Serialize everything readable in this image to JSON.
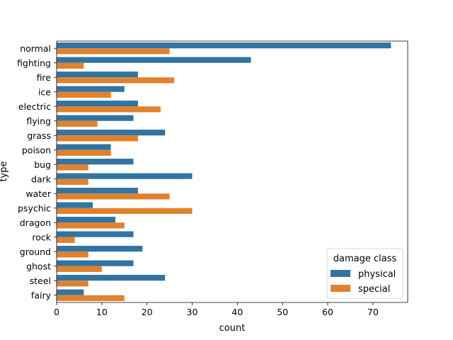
{
  "chart_data": {
    "type": "bar",
    "orientation": "horizontal",
    "xlabel": "count",
    "ylabel": "type",
    "xlim": [
      0,
      77.7
    ],
    "x_ticks": [
      0,
      10,
      20,
      30,
      40,
      50,
      60,
      70
    ],
    "grid": false,
    "categories": [
      "normal",
      "fighting",
      "fire",
      "ice",
      "electric",
      "flying",
      "grass",
      "poison",
      "bug",
      "dark",
      "water",
      "psychic",
      "dragon",
      "rock",
      "ground",
      "ghost",
      "steel",
      "fairy"
    ],
    "series": [
      {
        "name": "physical",
        "color": "#3274a1",
        "values": [
          74,
          43,
          18,
          15,
          18,
          17,
          24,
          12,
          17,
          30,
          18,
          8,
          13,
          17,
          19,
          17,
          24,
          6
        ]
      },
      {
        "name": "special",
        "color": "#e1812c",
        "values": [
          25,
          6,
          26,
          12,
          23,
          9,
          18,
          12,
          7,
          7,
          25,
          30,
          15,
          4,
          7,
          10,
          7,
          15
        ]
      }
    ],
    "legend": {
      "title": "damage class",
      "placement": "lower-right"
    }
  }
}
